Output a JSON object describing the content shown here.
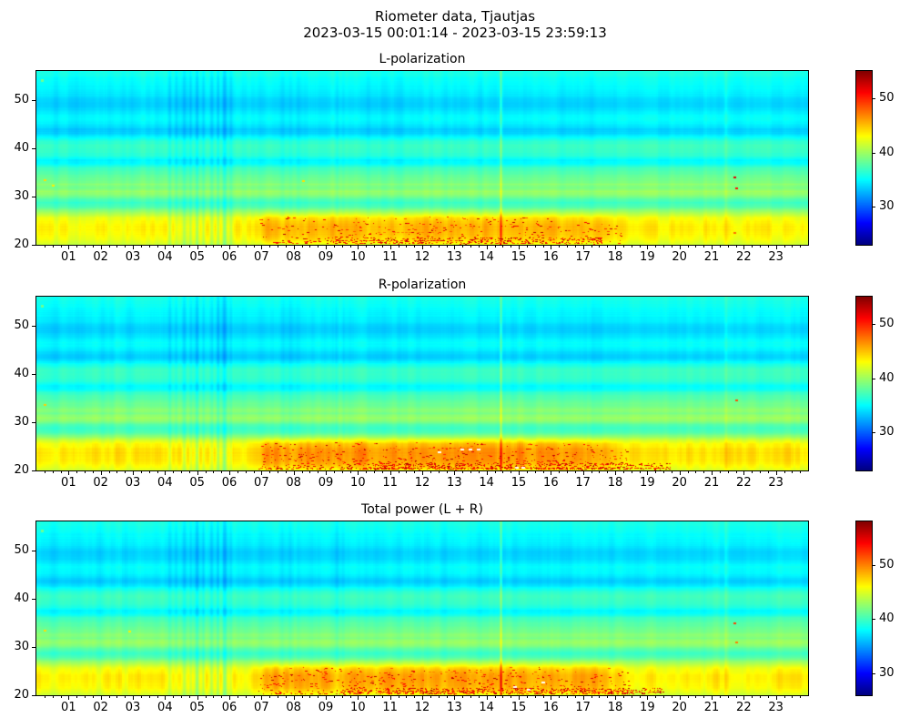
{
  "figure": {
    "title": "Riometer data, Tjautjas",
    "subtitle": "2023-03-15 00:01:14 - 2023-03-15 23:59:13",
    "background": "#ffffff",
    "text_color": "#000000"
  },
  "x_tick_labels": [
    "01",
    "02",
    "03",
    "04",
    "05",
    "06",
    "07",
    "08",
    "09",
    "10",
    "11",
    "12",
    "13",
    "14",
    "15",
    "16",
    "17",
    "18",
    "19",
    "20",
    "21",
    "22",
    "23"
  ],
  "x_minor_step_hours": 0.25,
  "vertical_stripes": [
    [
      0.55,
      0.15,
      -0.35
    ],
    [
      1.3,
      0.2,
      -0.3
    ],
    [
      2.05,
      0.12,
      -0.3
    ],
    [
      2.5,
      0.1,
      0.25
    ],
    [
      3.0,
      0.15,
      -0.3
    ],
    [
      3.3,
      0.1,
      0.3
    ],
    [
      3.75,
      0.1,
      -0.35
    ],
    [
      4.15,
      0.06,
      -1.0
    ],
    [
      4.35,
      0.05,
      -0.7
    ],
    [
      4.6,
      0.07,
      -1.3
    ],
    [
      4.8,
      0.05,
      -0.9
    ],
    [
      5.0,
      0.06,
      -1.5
    ],
    [
      5.2,
      0.05,
      -0.9
    ],
    [
      5.45,
      0.06,
      -1.1
    ],
    [
      5.65,
      0.05,
      -1.4
    ],
    [
      5.85,
      0.07,
      -1.7
    ],
    [
      6.05,
      0.05,
      -0.9
    ],
    [
      7.0,
      0.1,
      -0.3
    ],
    [
      7.65,
      0.08,
      -0.5
    ],
    [
      7.9,
      0.08,
      -0.55
    ],
    [
      8.15,
      0.08,
      -0.5
    ],
    [
      8.6,
      0.1,
      -0.3
    ],
    [
      9.35,
      0.06,
      -0.6
    ],
    [
      9.55,
      0.05,
      -0.45
    ],
    [
      10.3,
      0.1,
      -0.3
    ],
    [
      10.8,
      0.15,
      -0.4
    ],
    [
      11.3,
      0.12,
      -0.35
    ],
    [
      11.9,
      0.1,
      -0.3
    ],
    [
      12.7,
      0.1,
      -0.25
    ],
    [
      13.8,
      0.08,
      -0.3
    ],
    [
      16.4,
      0.1,
      -0.25
    ],
    [
      17.3,
      0.1,
      -0.2
    ],
    [
      21.5,
      2.5,
      0.2
    ]
  ],
  "blobs": [
    [
      7.15,
      0.12,
      1.0
    ],
    [
      7.45,
      0.1,
      0.85
    ],
    [
      7.8,
      0.12,
      1.05
    ],
    [
      8.2,
      0.1,
      0.9
    ],
    [
      8.45,
      0.08,
      0.7
    ],
    [
      9.0,
      0.2,
      0.5
    ],
    [
      10.0,
      0.3,
      0.5
    ],
    [
      11.0,
      0.3,
      0.55
    ],
    [
      12.0,
      0.35,
      0.6
    ],
    [
      13.0,
      0.3,
      0.6
    ],
    [
      14.0,
      0.3,
      0.65
    ],
    [
      15.0,
      0.3,
      0.6
    ],
    [
      15.9,
      0.25,
      0.6
    ],
    [
      16.8,
      0.25,
      0.5
    ],
    [
      17.4,
      0.2,
      0.4
    ]
  ],
  "faint_vline": {
    "x": 21.45,
    "w": 0.05,
    "amp": 0.8
  },
  "chart_data": [
    {
      "type": "heatmap",
      "title": "L-polarization",
      "xlabel": "",
      "ylabel": "",
      "x_range": [
        0,
        24
      ],
      "y_range": [
        20,
        56
      ],
      "y_ticks": [
        20,
        30,
        40,
        50
      ],
      "colormap": "jet",
      "clim": [
        23,
        55
      ],
      "colorbar_ticks": [
        30,
        40,
        50
      ],
      "profile": [
        [
          20,
          41.3
        ],
        [
          20.7,
          42.3
        ],
        [
          21.5,
          42.9
        ],
        [
          22.5,
          43.3
        ],
        [
          23.5,
          43.5
        ],
        [
          24.5,
          43.2
        ],
        [
          25.5,
          42.6
        ],
        [
          26.3,
          41.0
        ],
        [
          27.0,
          39.6
        ],
        [
          27.8,
          37.6
        ],
        [
          28.7,
          36.8
        ],
        [
          29.5,
          37.8
        ],
        [
          30.2,
          39.2
        ],
        [
          31.0,
          39.9
        ],
        [
          31.8,
          38.9
        ],
        [
          32.5,
          39.4
        ],
        [
          33.2,
          38.6
        ],
        [
          34.0,
          38.3
        ],
        [
          35.0,
          37.6
        ],
        [
          36.0,
          36.9
        ],
        [
          36.8,
          35.2
        ],
        [
          37.5,
          34.8
        ],
        [
          38.3,
          36.2
        ],
        [
          39.5,
          36.8
        ],
        [
          40.5,
          36.9
        ],
        [
          41.5,
          36.3
        ],
        [
          42.3,
          35.0
        ],
        [
          43.0,
          33.8
        ],
        [
          43.8,
          33.4
        ],
        [
          44.6,
          34.2
        ],
        [
          45.5,
          34.9
        ],
        [
          46.5,
          35.1
        ],
        [
          47.3,
          34.6
        ],
        [
          48.2,
          33.9
        ],
        [
          49.0,
          33.5
        ],
        [
          49.8,
          33.6
        ],
        [
          50.8,
          34.3
        ],
        [
          52.0,
          34.8
        ],
        [
          53.0,
          35.0
        ],
        [
          54.0,
          35.2
        ],
        [
          55.0,
          35.6
        ],
        [
          56.0,
          35.9
        ]
      ],
      "enh": {
        "amp": 1.7,
        "in": [
          6.5,
          7.3
        ],
        "out": [
          17.4,
          18.6
        ],
        "y_center": 23.2,
        "y_sigma": 3.2
      },
      "blob_mul": 0.75,
      "vline": {
        "x": 14.45,
        "w": 0.035,
        "top": 2.6,
        "bottom": 5.2
      },
      "speckles": {
        "seed": 101,
        "main": {
          "n": 380,
          "x0": 6.9,
          "x1": 18.2,
          "y0": 20.3,
          "y1": 25.8
        },
        "rows": {
          "n": 260,
          "x0": 9.0,
          "x1": 17.6,
          "y0": 20.25,
          "y1": 21.6
        }
      },
      "hlines": [
        [
          9.3,
          13.2,
          21.0,
          49
        ],
        [
          15.5,
          17.3,
          21.1,
          48
        ],
        [
          10.5,
          12.3,
          22.6,
          47
        ]
      ],
      "dots": [
        [
          21.72,
          34.0,
          52
        ],
        [
          21.76,
          31.6,
          50.5
        ],
        [
          21.7,
          22.4,
          47.5
        ],
        [
          7.85,
          20.7,
          49.5
        ],
        [
          0.25,
          33.3,
          44
        ],
        [
          0.5,
          32.3,
          43.5
        ],
        [
          8.3,
          33.2,
          44
        ]
      ],
      "white_dashes": [],
      "marker": {
        "x": 0.17,
        "y": 54.2,
        "v": 38.5
      }
    },
    {
      "type": "heatmap",
      "title": "R-polarization",
      "xlabel": "",
      "ylabel": "",
      "x_range": [
        0,
        24
      ],
      "y_range": [
        20,
        56
      ],
      "y_ticks": [
        20,
        30,
        40,
        50
      ],
      "colormap": "jet",
      "clim": [
        23,
        55
      ],
      "colorbar_ticks": [
        30,
        40,
        50
      ],
      "profile": [
        [
          20,
          41.6
        ],
        [
          20.7,
          42.7
        ],
        [
          21.5,
          43.3
        ],
        [
          22.5,
          43.7
        ],
        [
          23.5,
          43.9
        ],
        [
          24.5,
          43.6
        ],
        [
          25.5,
          43.0
        ],
        [
          26.3,
          41.3
        ],
        [
          27.0,
          39.6
        ],
        [
          27.8,
          37.6
        ],
        [
          28.7,
          36.8
        ],
        [
          29.5,
          37.8
        ],
        [
          30.2,
          39.2
        ],
        [
          31.0,
          39.9
        ],
        [
          31.8,
          38.9
        ],
        [
          32.5,
          39.4
        ],
        [
          33.2,
          38.6
        ],
        [
          34.0,
          38.3
        ],
        [
          35.0,
          37.6
        ],
        [
          36.0,
          36.9
        ],
        [
          36.8,
          35.2
        ],
        [
          37.5,
          34.8
        ],
        [
          38.3,
          36.2
        ],
        [
          39.5,
          36.8
        ],
        [
          40.5,
          36.9
        ],
        [
          41.5,
          36.3
        ],
        [
          42.3,
          35.0
        ],
        [
          43.0,
          33.8
        ],
        [
          43.8,
          33.4
        ],
        [
          44.6,
          34.2
        ],
        [
          45.5,
          34.9
        ],
        [
          46.5,
          35.1
        ],
        [
          47.3,
          34.6
        ],
        [
          48.2,
          33.9
        ],
        [
          49.0,
          33.5
        ],
        [
          49.8,
          33.6
        ],
        [
          50.8,
          34.3
        ],
        [
          52.0,
          34.8
        ],
        [
          53.0,
          35.0
        ],
        [
          54.0,
          35.2
        ],
        [
          55.0,
          35.6
        ],
        [
          56.0,
          35.9
        ]
      ],
      "enh": {
        "amp": 2.1,
        "in": [
          6.5,
          7.3
        ],
        "out": [
          17.4,
          18.6
        ],
        "y_center": 23.2,
        "y_sigma": 3.2
      },
      "blob_mul": 1.15,
      "vline": {
        "x": 14.45,
        "w": 0.035,
        "top": 3.0,
        "bottom": 6.0
      },
      "speckles": {
        "seed": 202,
        "main": {
          "n": 540,
          "x0": 6.9,
          "x1": 18.4,
          "y0": 20.3,
          "y1": 25.8
        },
        "rows": {
          "n": 430,
          "x0": 9.5,
          "x1": 19.7,
          "y0": 20.25,
          "y1": 21.6
        }
      },
      "hlines": [
        [
          10.2,
          14.2,
          20.6,
          50
        ],
        [
          14.6,
          19.6,
          20.5,
          50
        ],
        [
          12.2,
          13.8,
          24.7,
          48
        ]
      ],
      "dots": [
        [
          21.77,
          34.6,
          48.5
        ],
        [
          0.25,
          33.5,
          44.5
        ]
      ],
      "white_dashes": [
        [
          13.25,
          24.6
        ],
        [
          13.5,
          24.6
        ],
        [
          13.75,
          24.6
        ],
        [
          14.95,
          20.7
        ],
        [
          15.15,
          20.7
        ],
        [
          12.55,
          24.0
        ]
      ],
      "marker": {
        "x": 0.17,
        "y": 54.2,
        "v": 38.5
      }
    },
    {
      "type": "heatmap",
      "title": "Total power (L + R)",
      "xlabel": "",
      "ylabel": "",
      "x_range": [
        0,
        24
      ],
      "y_range": [
        20,
        56
      ],
      "y_ticks": [
        20,
        30,
        40,
        50
      ],
      "colormap": "jet",
      "clim": [
        26,
        58
      ],
      "colorbar_ticks": [
        30,
        40,
        50
      ],
      "profile": [
        [
          20,
          44.3
        ],
        [
          20.7,
          45.3
        ],
        [
          21.5,
          45.9
        ],
        [
          22.5,
          46.3
        ],
        [
          23.5,
          46.5
        ],
        [
          24.5,
          46.2
        ],
        [
          25.5,
          45.6
        ],
        [
          26.3,
          44.0
        ],
        [
          27.0,
          42.6
        ],
        [
          27.8,
          40.6
        ],
        [
          28.7,
          39.8
        ],
        [
          29.5,
          40.8
        ],
        [
          30.2,
          42.2
        ],
        [
          31.0,
          42.9
        ],
        [
          31.8,
          41.9
        ],
        [
          32.5,
          42.4
        ],
        [
          33.2,
          41.6
        ],
        [
          34.0,
          41.3
        ],
        [
          35.0,
          40.6
        ],
        [
          36.0,
          39.9
        ],
        [
          36.8,
          38.2
        ],
        [
          37.5,
          37.8
        ],
        [
          38.3,
          39.2
        ],
        [
          39.5,
          39.8
        ],
        [
          40.5,
          39.9
        ],
        [
          41.5,
          39.3
        ],
        [
          42.3,
          38.0
        ],
        [
          43.0,
          36.8
        ],
        [
          43.8,
          36.4
        ],
        [
          44.6,
          37.2
        ],
        [
          45.5,
          37.9
        ],
        [
          46.5,
          38.1
        ],
        [
          47.3,
          37.6
        ],
        [
          48.2,
          36.9
        ],
        [
          49.0,
          36.5
        ],
        [
          49.8,
          36.6
        ],
        [
          50.8,
          37.3
        ],
        [
          52.0,
          37.8
        ],
        [
          53.0,
          38.0
        ],
        [
          54.0,
          38.2
        ],
        [
          55.0,
          38.6
        ],
        [
          56.0,
          38.9
        ]
      ],
      "enh": {
        "amp": 2.0,
        "in": [
          6.5,
          7.3
        ],
        "out": [
          17.4,
          18.6
        ],
        "y_center": 23.2,
        "y_sigma": 3.2
      },
      "blob_mul": 1.05,
      "vline": {
        "x": 14.45,
        "w": 0.035,
        "top": 3.2,
        "bottom": 7.0
      },
      "speckles": {
        "seed": 303,
        "main": {
          "n": 500,
          "x0": 6.9,
          "x1": 18.4,
          "y0": 20.3,
          "y1": 25.8
        },
        "rows": {
          "n": 390,
          "x0": 9.5,
          "x1": 19.5,
          "y0": 20.25,
          "y1": 21.6
        }
      },
      "hlines": [
        [
          10.2,
          14.2,
          20.9,
          52
        ],
        [
          14.6,
          19.4,
          20.7,
          52
        ],
        [
          12.2,
          13.8,
          24.9,
          50
        ]
      ],
      "dots": [
        [
          21.7,
          34.8,
          52
        ],
        [
          21.75,
          31.0,
          50
        ],
        [
          0.25,
          33.3,
          47
        ],
        [
          2.9,
          33.2,
          46.5
        ]
      ],
      "white_dashes": [
        [
          15.75,
          22.9
        ],
        [
          14.9,
          21.9
        ],
        [
          15.3,
          21.4
        ]
      ],
      "marker": {
        "x": 0.17,
        "y": 54.2,
        "v": 41.5
      }
    }
  ]
}
